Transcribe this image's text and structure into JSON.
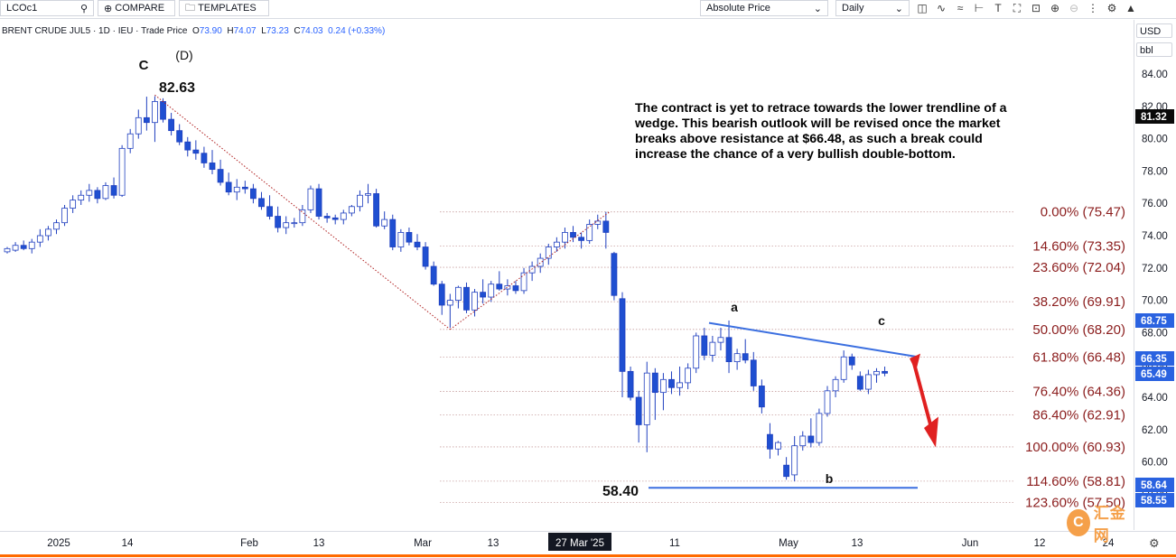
{
  "toolbar": {
    "symbol": "LCOc1",
    "compare_label": "COMPARE",
    "templates_label": "TEMPLATES",
    "price_type": "Absolute Price",
    "interval": "Daily",
    "icons": [
      "candles-icon",
      "indicators-icon",
      "drawing-icon",
      "crosshair-icon",
      "text-icon",
      "fullscreen-icon",
      "zoom-in-icon",
      "zoom-out-icon",
      "more-icon",
      "settings-icon",
      "logo-icon"
    ]
  },
  "legend": {
    "title": "BRENT CRUDE JUL5 · 1D · IEU · Trade Price",
    "open_label": "O",
    "open": "73.90",
    "high_label": "H",
    "high": "74.07",
    "low_label": "L",
    "low": "73.23",
    "close_label": "C",
    "close": "74.03",
    "change": "0.24 (+0.33%)"
  },
  "axis_controls": {
    "currency": "USD",
    "unit": "bbl"
  },
  "annotation": "The contract is yet to retrace towards the lower trendline of a wedge. This bearish outlook will be revised once the market breaks above resistance at $66.48, as such a break could increase the chance of a very bullish double-bottom.",
  "watermark": "汇金网",
  "chart_data": {
    "type": "candlestick",
    "symbol": "BRENT CRUDE JUL5",
    "y_ticks": [
      "84.00",
      "82.00",
      "80.00",
      "78.00",
      "76.00",
      "74.00",
      "72.00",
      "70.00",
      "68.00",
      "66.00",
      "64.00",
      "62.00",
      "60.00",
      "58.00"
    ],
    "x_ticks": [
      "2025",
      "14",
      "Feb",
      "13",
      "Mar",
      "13",
      "11",
      "May",
      "13",
      "Jun",
      "12",
      "24"
    ],
    "crosshair_date": "27 Mar '25",
    "price_labels": [
      {
        "value": "81.32",
        "style": "dark"
      },
      {
        "value": "68.75",
        "style": "blue"
      },
      {
        "value": "66.35",
        "style": "blue"
      },
      {
        "value": "65.49",
        "style": "blue"
      },
      {
        "value": "58.64",
        "style": "blue"
      },
      {
        "value": "58.55",
        "style": "blue"
      }
    ],
    "fib_levels": [
      {
        "label": "0.00% (75.47)",
        "price": 75.47
      },
      {
        "label": "14.60% (73.35)",
        "price": 73.35
      },
      {
        "label": "23.60% (72.04)",
        "price": 72.04
      },
      {
        "label": "38.20% (69.91)",
        "price": 69.91
      },
      {
        "label": "50.00% (68.20)",
        "price": 68.2
      },
      {
        "label": "61.80% (66.48)",
        "price": 66.48
      },
      {
        "label": "76.40% (64.36)",
        "price": 64.36
      },
      {
        "label": "86.40% (62.91)",
        "price": 62.91
      },
      {
        "label": "100.00% (60.93)",
        "price": 60.93
      },
      {
        "label": "114.60% (58.81)",
        "price": 58.81
      },
      {
        "label": "123.60% (57.50)",
        "price": 57.5
      }
    ],
    "wave_labels": [
      "C",
      "(D)",
      "a",
      "b",
      "c"
    ],
    "price_annotations": [
      "82.63",
      "58.40"
    ],
    "candles": [
      [
        73.0,
        73.3,
        72.9,
        73.2
      ],
      [
        73.1,
        73.6,
        73.0,
        73.4
      ],
      [
        73.4,
        73.7,
        73.1,
        73.2
      ],
      [
        73.2,
        73.8,
        72.9,
        73.6
      ],
      [
        73.6,
        74.4,
        73.3,
        74.0
      ],
      [
        74.0,
        74.6,
        73.7,
        74.4
      ],
      [
        74.4,
        75.0,
        74.1,
        74.8
      ],
      [
        74.8,
        75.9,
        74.6,
        75.7
      ],
      [
        75.7,
        76.5,
        75.4,
        76.2
      ],
      [
        76.2,
        76.8,
        75.9,
        76.5
      ],
      [
        76.5,
        77.2,
        76.1,
        76.8
      ],
      [
        76.8,
        77.0,
        76.0,
        76.3
      ],
      [
        76.3,
        77.3,
        76.2,
        77.1
      ],
      [
        77.1,
        77.6,
        76.3,
        76.5
      ],
      [
        76.5,
        79.6,
        76.4,
        79.4
      ],
      [
        79.4,
        80.6,
        79.1,
        80.3
      ],
      [
        80.3,
        81.8,
        80.0,
        81.3
      ],
      [
        81.3,
        82.6,
        80.5,
        81.0
      ],
      [
        81.0,
        82.63,
        79.8,
        82.3
      ],
      [
        82.3,
        82.5,
        81.0,
        81.2
      ],
      [
        81.2,
        81.6,
        80.2,
        80.5
      ],
      [
        80.5,
        80.9,
        79.6,
        79.8
      ],
      [
        79.8,
        80.1,
        78.9,
        79.3
      ],
      [
        79.3,
        79.9,
        78.7,
        79.1
      ],
      [
        79.1,
        79.5,
        78.2,
        78.5
      ],
      [
        78.5,
        79.3,
        77.8,
        78.1
      ],
      [
        78.1,
        78.7,
        77.1,
        77.3
      ],
      [
        77.3,
        77.9,
        76.5,
        76.7
      ],
      [
        76.7,
        77.5,
        76.2,
        77.0
      ],
      [
        77.0,
        77.4,
        76.6,
        76.9
      ],
      [
        76.9,
        77.2,
        76.0,
        76.3
      ],
      [
        76.3,
        76.7,
        75.6,
        75.8
      ],
      [
        75.8,
        76.5,
        75.0,
        75.2
      ],
      [
        75.2,
        75.8,
        74.2,
        74.5
      ],
      [
        74.5,
        75.2,
        74.1,
        74.8
      ],
      [
        74.8,
        75.1,
        74.5,
        74.8
      ],
      [
        74.8,
        75.9,
        74.6,
        75.6
      ],
      [
        75.6,
        77.1,
        75.4,
        76.9
      ],
      [
        76.9,
        77.2,
        75.0,
        75.2
      ],
      [
        75.2,
        75.4,
        74.8,
        75.1
      ],
      [
        75.1,
        75.3,
        74.7,
        75.0
      ],
      [
        75.0,
        75.6,
        74.7,
        75.4
      ],
      [
        75.4,
        75.9,
        75.2,
        75.8
      ],
      [
        75.8,
        76.8,
        75.5,
        76.5
      ],
      [
        76.5,
        77.2,
        76.0,
        76.6
      ],
      [
        76.6,
        76.9,
        74.5,
        74.6
      ],
      [
        74.6,
        75.5,
        74.4,
        75.0
      ],
      [
        75.0,
        75.3,
        73.1,
        73.3
      ],
      [
        73.3,
        74.4,
        73.0,
        74.2
      ],
      [
        74.2,
        74.5,
        73.4,
        73.6
      ],
      [
        73.6,
        74.1,
        73.1,
        73.3
      ],
      [
        73.3,
        73.6,
        71.9,
        72.1
      ],
      [
        72.1,
        72.4,
        70.9,
        71.0
      ],
      [
        71.0,
        71.2,
        69.1,
        69.7
      ],
      [
        69.7,
        70.4,
        68.3,
        70.0
      ],
      [
        70.0,
        70.9,
        69.5,
        70.8
      ],
      [
        70.8,
        71.1,
        69.2,
        69.4
      ],
      [
        69.4,
        70.7,
        69.0,
        70.5
      ],
      [
        70.5,
        71.3,
        69.8,
        70.2
      ],
      [
        70.2,
        71.2,
        69.9,
        71.0
      ],
      [
        71.0,
        71.8,
        70.6,
        70.7
      ],
      [
        70.7,
        71.3,
        70.3,
        70.9
      ],
      [
        70.9,
        71.2,
        70.4,
        70.6
      ],
      [
        70.6,
        72.0,
        70.4,
        71.7
      ],
      [
        71.7,
        72.4,
        71.2,
        72.1
      ],
      [
        72.1,
        72.9,
        71.7,
        72.6
      ],
      [
        72.6,
        73.5,
        72.2,
        73.3
      ],
      [
        73.3,
        73.9,
        73.0,
        73.6
      ],
      [
        73.6,
        74.5,
        73.2,
        74.2
      ],
      [
        74.2,
        74.6,
        73.6,
        73.9
      ],
      [
        73.9,
        74.2,
        73.2,
        73.7
      ],
      [
        73.7,
        75.0,
        73.5,
        74.7
      ],
      [
        74.7,
        75.3,
        74.4,
        74.9
      ],
      [
        74.9,
        75.47,
        73.2,
        74.2
      ],
      [
        72.9,
        73.0,
        70.0,
        70.3
      ],
      [
        70.1,
        70.5,
        64.0,
        65.6
      ],
      [
        65.6,
        65.9,
        63.8,
        64.0
      ],
      [
        64.0,
        64.4,
        61.2,
        62.3
      ],
      [
        62.3,
        66.2,
        60.6,
        65.5
      ],
      [
        65.5,
        65.8,
        62.6,
        64.3
      ],
      [
        64.3,
        65.5,
        63.2,
        65.1
      ],
      [
        65.1,
        65.6,
        64.2,
        64.6
      ],
      [
        64.6,
        65.9,
        64.1,
        64.9
      ],
      [
        64.9,
        66.1,
        64.5,
        65.8
      ],
      [
        65.8,
        68.0,
        65.5,
        67.8
      ],
      [
        67.8,
        68.3,
        66.3,
        66.6
      ],
      [
        66.6,
        67.8,
        66.2,
        67.4
      ],
      [
        67.4,
        68.3,
        66.9,
        67.7
      ],
      [
        67.7,
        68.75,
        65.5,
        66.2
      ],
      [
        66.2,
        67.0,
        65.7,
        66.7
      ],
      [
        66.7,
        67.6,
        66.1,
        66.3
      ],
      [
        66.3,
        66.8,
        64.4,
        64.7
      ],
      [
        64.7,
        65.1,
        63.0,
        63.4
      ],
      [
        61.7,
        62.4,
        60.2,
        60.8
      ],
      [
        60.8,
        61.3,
        60.4,
        61.2
      ],
      [
        59.8,
        60.3,
        58.9,
        59.1
      ],
      [
        59.2,
        61.6,
        58.8,
        61.0
      ],
      [
        61.0,
        61.9,
        60.7,
        61.6
      ],
      [
        61.6,
        62.7,
        60.9,
        61.2
      ],
      [
        61.2,
        63.3,
        61.0,
        63.0
      ],
      [
        63.0,
        64.7,
        62.8,
        64.4
      ],
      [
        64.4,
        65.3,
        64.0,
        65.1
      ],
      [
        65.1,
        66.9,
        64.9,
        66.5
      ],
      [
        66.5,
        66.7,
        65.7,
        66.0
      ],
      [
        65.3,
        65.6,
        64.4,
        64.5
      ],
      [
        64.5,
        65.7,
        64.2,
        65.4
      ],
      [
        65.4,
        65.8,
        64.9,
        65.6
      ],
      [
        65.6,
        65.9,
        65.3,
        65.49
      ]
    ]
  }
}
